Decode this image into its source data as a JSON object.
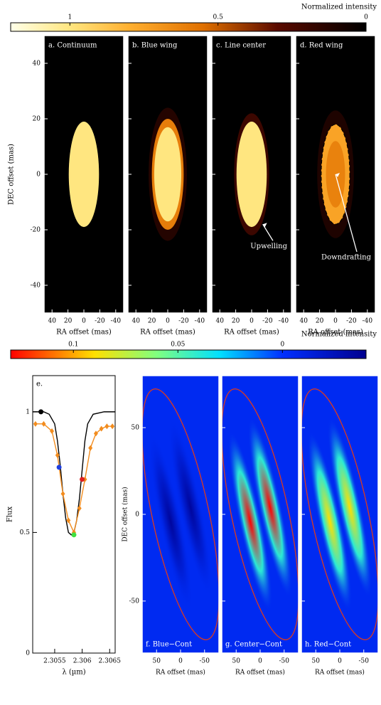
{
  "chart_data": {
    "type": "panels",
    "top": {
      "colorbar": {
        "label": "Normalized intensity",
        "clim": [
          0,
          1.2
        ],
        "ticks": [
          0,
          0.5,
          1
        ],
        "stops": [
          [
            0,
            "#000000"
          ],
          [
            0.3,
            "#5a0a00"
          ],
          [
            0.55,
            "#e07000"
          ],
          [
            0.8,
            "#ffb030"
          ],
          [
            1.0,
            "#ffe680"
          ],
          [
            1.2,
            "#ffffe8"
          ]
        ]
      },
      "ylabel": "DEC offset (mas)",
      "xlabel": "RA offset (mas)",
      "lim": [
        50,
        -50
      ],
      "ticks": [
        40,
        20,
        0,
        -20,
        -40
      ],
      "panels": [
        {
          "label": "a. Continuum",
          "disks": [
            {
              "r": 19,
              "value": 1.0
            }
          ]
        },
        {
          "label": "b. Blue wing",
          "disks": [
            {
              "r": 24,
              "value": 0.12
            },
            {
              "r": 20,
              "value": 0.6
            },
            {
              "r": 17,
              "value": 1.0
            }
          ]
        },
        {
          "label": "c. Line center",
          "disks": [
            {
              "r": 22,
              "value": 0.2
            },
            {
              "r": 19,
              "value": 1.0
            }
          ],
          "annotation": "Upwelling"
        },
        {
          "label": "d. Red wing",
          "disks": [
            {
              "r": 23,
              "value": 0.1
            },
            {
              "r": 18,
              "value": 0.75
            },
            {
              "r": 12,
              "value": 0.62
            }
          ],
          "annotation": "Downdrafting"
        }
      ]
    },
    "spectrum": {
      "type": "line",
      "label": "e.",
      "xlabel": "λ (µm)",
      "ylabel": "Flux",
      "xlim": [
        2.3051,
        2.3066
      ],
      "xticks": [
        2.3055,
        2.306,
        2.3065
      ],
      "ylim": [
        0,
        1.15
      ],
      "yticks": [
        0,
        0.5,
        1
      ],
      "series": [
        {
          "color": "#000000",
          "x": [
            2.3051,
            2.3053,
            2.3054,
            2.3055,
            2.30555,
            2.3056,
            2.30565,
            2.3057,
            2.30575,
            2.3058,
            2.30585,
            2.3059,
            2.30595,
            2.306,
            2.30605,
            2.3061,
            2.3062,
            2.3064,
            2.3066
          ],
          "values": [
            1,
            1,
            0.99,
            0.95,
            0.88,
            0.78,
            0.66,
            0.56,
            0.5,
            0.49,
            0.5,
            0.55,
            0.64,
            0.76,
            0.88,
            0.95,
            0.99,
            1,
            1
          ]
        },
        {
          "color": "#f28c1e",
          "marker": "diamond",
          "x": [
            2.30515,
            2.3053,
            2.30545,
            2.30555,
            2.30565,
            2.30575,
            2.30585,
            2.30595,
            2.30605,
            2.30615,
            2.30625,
            2.30635,
            2.30645,
            2.30655
          ],
          "values": [
            0.95,
            0.95,
            0.92,
            0.82,
            0.66,
            0.55,
            0.5,
            0.6,
            0.72,
            0.85,
            0.91,
            0.93,
            0.94,
            0.94
          ]
        }
      ],
      "points": [
        {
          "color": "#000000",
          "x": 2.30525,
          "value": 1.0
        },
        {
          "color": "#1f3fe0",
          "x": 2.30558,
          "value": 0.77
        },
        {
          "color": "#40e040",
          "x": 2.30585,
          "value": 0.49
        },
        {
          "color": "#e02020",
          "x": 2.306,
          "value": 0.72
        }
      ]
    },
    "bottom": {
      "colorbar": {
        "label": "Normalized intensity",
        "clim": [
          -0.04,
          0.13
        ],
        "ticks": [
          0,
          0.05,
          0.1
        ],
        "stops": [
          [
            -0.04,
            "#00008f"
          ],
          [
            0.0,
            "#0030ff"
          ],
          [
            0.03,
            "#00e0ff"
          ],
          [
            0.06,
            "#80ff80"
          ],
          [
            0.09,
            "#ffe000"
          ],
          [
            0.13,
            "#ff0000"
          ]
        ]
      },
      "ylabel": "DEC offset (mas)",
      "xlabel": "RA offset (mas)",
      "lim": [
        80,
        -80
      ],
      "ticks": [
        50,
        0,
        -50
      ],
      "background": -0.005,
      "outline": "#d03a2a",
      "panels": [
        {
          "label": "f. Blue−Cont",
          "core": -0.035,
          "halo": -0.015
        },
        {
          "label": "g. Center−Cont",
          "core": 0.13,
          "halo": 0.04
        },
        {
          "label": "h. Red−Cont",
          "core": 0.09,
          "halo": 0.04
        }
      ]
    }
  }
}
